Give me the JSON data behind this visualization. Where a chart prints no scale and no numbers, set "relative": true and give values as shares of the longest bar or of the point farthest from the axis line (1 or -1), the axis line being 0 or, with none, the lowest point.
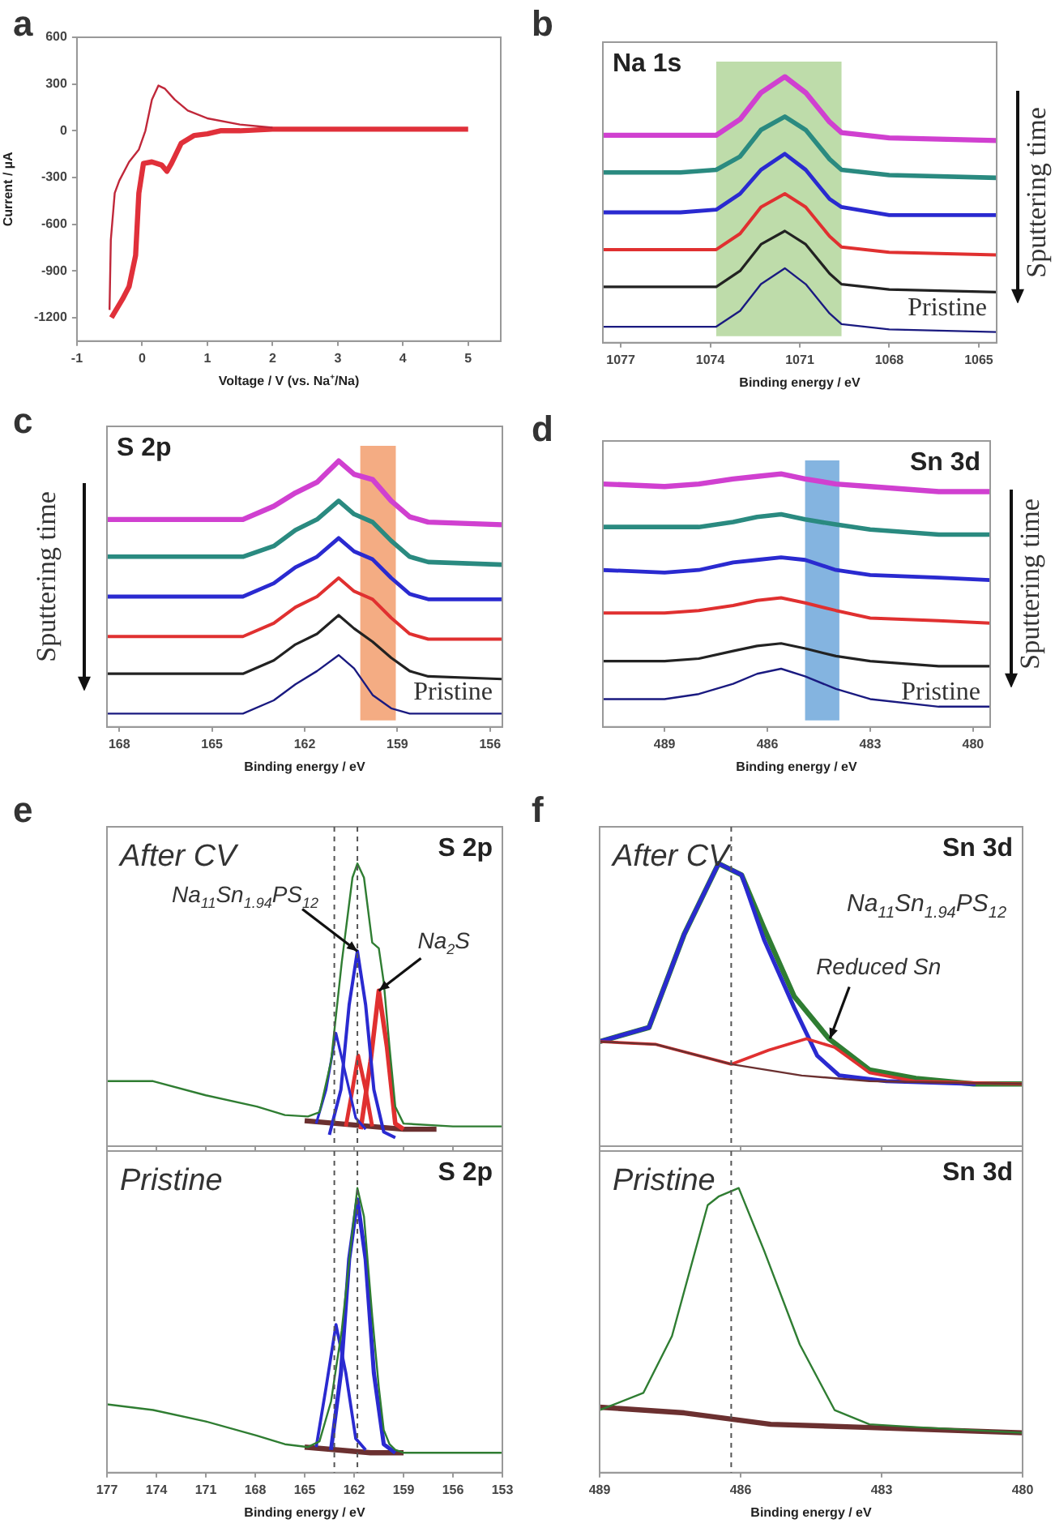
{
  "chart_data": [
    {
      "type": "line",
      "xlabel": "Voltage / V (vs. Na$^{+}$/Na)",
      "ylabel": "Current / µA",
      "xlim": [
        -1,
        5.5
      ],
      "xticks": [
        -1,
        0,
        1,
        2,
        3,
        4,
        5
      ],
      "ylim": [
        -1350,
        600
      ],
      "yticks": [
        -1200,
        -900,
        -600,
        -300,
        0,
        300,
        600
      ],
      "annotations": [
        "a"
      ],
      "series": [
        {
          "color": "#e0303a",
          "x": [
            5,
            4,
            3,
            2,
            1.5,
            1.2,
            1.0,
            0.8,
            0.6,
            0.45,
            0.38,
            0.3,
            0.15,
            0.02,
            -0.05,
            -0.1,
            -0.2,
            -0.3,
            -0.4,
            -0.47
          ],
          "values": [
            10,
            10,
            10,
            10,
            0,
            0,
            -20,
            -30,
            -80,
            -210,
            -260,
            -220,
            -200,
            -210,
            -400,
            -800,
            -1000,
            -1080,
            -1150,
            -1200
          ]
        },
        {
          "color": "#c0283a",
          "x": [
            -0.5,
            -0.48,
            -0.42,
            -0.35,
            -0.2,
            -0.05,
            0.05,
            0.15,
            0.25,
            0.35,
            0.5,
            0.7,
            1.0,
            1.5,
            2
          ],
          "values": [
            -1150,
            -700,
            -400,
            -320,
            -200,
            -120,
            0,
            200,
            290,
            270,
            200,
            130,
            80,
            40,
            20
          ]
        }
      ]
    },
    {
      "type": "line",
      "title": "Na 1s",
      "xlabel": "Binding energy / eV",
      "relative": true,
      "tick_labels": "x",
      "xlim": [
        1077.6,
        1064.4
      ],
      "xticks": [
        1077,
        1074,
        1071,
        1068,
        1065
      ],
      "annotations": [
        "b",
        "Pristine",
        "Sputtering time"
      ],
      "bands": [
        {
          "axis": "x",
          "from": 1073.8,
          "to": 1069.6,
          "color": "#a8d08d"
        }
      ],
      "series": [
        {
          "color": "#d040d0",
          "x": [
            1077.6,
            1075,
            1073.8,
            1073,
            1072.3,
            1071.5,
            1070.8,
            1070,
            1069.6,
            1068,
            1064.4
          ],
          "values": [
            0.78,
            0.78,
            0.78,
            0.84,
            0.94,
            1.0,
            0.94,
            0.83,
            0.79,
            0.77,
            0.76
          ]
        },
        {
          "color": "#2a8a80",
          "x": [
            1077.6,
            1075,
            1073.8,
            1073,
            1072.3,
            1071.5,
            1070.8,
            1070,
            1069.6,
            1068,
            1064.4
          ],
          "values": [
            0.64,
            0.64,
            0.65,
            0.7,
            0.8,
            0.85,
            0.8,
            0.69,
            0.65,
            0.63,
            0.62
          ]
        },
        {
          "color": "#2a2ad0",
          "x": [
            1077.6,
            1075,
            1073.8,
            1073,
            1072.3,
            1071.5,
            1070.8,
            1070,
            1069.6,
            1068,
            1064.4
          ],
          "values": [
            0.49,
            0.49,
            0.5,
            0.56,
            0.65,
            0.71,
            0.65,
            0.54,
            0.51,
            0.48,
            0.48
          ]
        },
        {
          "color": "#e03030",
          "x": [
            1077.6,
            1075,
            1073.8,
            1073,
            1072.3,
            1071.5,
            1070.8,
            1070,
            1069.6,
            1068,
            1064.4
          ],
          "values": [
            0.35,
            0.35,
            0.35,
            0.41,
            0.51,
            0.56,
            0.51,
            0.4,
            0.36,
            0.34,
            0.33
          ]
        },
        {
          "color": "#222222",
          "x": [
            1077.6,
            1075,
            1073.8,
            1073,
            1072.3,
            1071.5,
            1070.8,
            1070,
            1069.6,
            1068,
            1064.4
          ],
          "values": [
            0.21,
            0.21,
            0.21,
            0.27,
            0.37,
            0.42,
            0.37,
            0.26,
            0.22,
            0.2,
            0.19
          ]
        },
        {
          "color": "#1a1a80",
          "x": [
            1077.6,
            1075,
            1073.8,
            1073,
            1072.3,
            1071.5,
            1070.8,
            1070,
            1069.6,
            1068,
            1064.4
          ],
          "values": [
            0.06,
            0.06,
            0.06,
            0.12,
            0.22,
            0.28,
            0.22,
            0.11,
            0.07,
            0.05,
            0.04
          ]
        }
      ]
    },
    {
      "type": "line",
      "title": "S 2p",
      "xlabel": "Binding energy / eV",
      "relative": true,
      "tick_labels": "x",
      "xlim": [
        168.4,
        155.6
      ],
      "xticks": [
        168,
        165,
        162,
        159,
        156
      ],
      "annotations": [
        "c",
        "Pristine",
        "Sputtering time"
      ],
      "bands": [
        {
          "axis": "x",
          "from": 160.2,
          "to": 159.05,
          "color": "#f0905a"
        }
      ],
      "series": [
        {
          "color": "#d040d0",
          "x": [
            168.4,
            166,
            164,
            163,
            162.3,
            161.6,
            160.9,
            160.4,
            159.8,
            159.2,
            158.6,
            158,
            155.6
          ],
          "values": [
            0.78,
            0.78,
            0.78,
            0.83,
            0.88,
            0.92,
            1.0,
            0.95,
            0.93,
            0.85,
            0.79,
            0.77,
            0.76
          ]
        },
        {
          "color": "#2a8a80",
          "x": [
            168.4,
            166,
            164,
            163,
            162.3,
            161.6,
            160.9,
            160.4,
            159.8,
            159.2,
            158.6,
            158,
            155.6
          ],
          "values": [
            0.64,
            0.64,
            0.64,
            0.68,
            0.74,
            0.78,
            0.85,
            0.8,
            0.77,
            0.7,
            0.64,
            0.62,
            0.61
          ]
        },
        {
          "color": "#2a2ad0",
          "x": [
            168.4,
            166,
            164,
            163,
            162.3,
            161.6,
            160.9,
            160.4,
            159.8,
            159.2,
            158.6,
            158,
            155.6
          ],
          "values": [
            0.49,
            0.49,
            0.49,
            0.54,
            0.6,
            0.64,
            0.71,
            0.66,
            0.63,
            0.56,
            0.5,
            0.48,
            0.48
          ]
        },
        {
          "color": "#e03030",
          "x": [
            168.4,
            166,
            164,
            163,
            162.3,
            161.6,
            160.9,
            160.4,
            159.8,
            159.2,
            158.6,
            158,
            155.6
          ],
          "values": [
            0.34,
            0.34,
            0.34,
            0.39,
            0.45,
            0.49,
            0.56,
            0.51,
            0.48,
            0.41,
            0.35,
            0.33,
            0.33
          ]
        },
        {
          "color": "#222222",
          "x": [
            168.4,
            166,
            164,
            163,
            162.3,
            161.6,
            160.9,
            160.4,
            159.8,
            159.2,
            158.6,
            158,
            155.6
          ],
          "values": [
            0.2,
            0.2,
            0.2,
            0.25,
            0.31,
            0.35,
            0.42,
            0.37,
            0.32,
            0.26,
            0.21,
            0.19,
            0.18
          ]
        },
        {
          "color": "#1a1a80",
          "x": [
            168.4,
            166,
            164,
            163,
            162.3,
            161.6,
            160.9,
            160.4,
            159.8,
            159.2,
            158.6,
            158,
            155.6
          ],
          "values": [
            0.05,
            0.05,
            0.05,
            0.1,
            0.16,
            0.21,
            0.27,
            0.22,
            0.12,
            0.07,
            0.05,
            0.05,
            0.05
          ]
        }
      ]
    },
    {
      "type": "line",
      "title": "Sn 3d",
      "xlabel": "Binding energy / eV",
      "relative": true,
      "tick_labels": "x",
      "xlim": [
        490.8,
        479.5
      ],
      "xticks": [
        489,
        486,
        483,
        480
      ],
      "annotations": [
        "d",
        "Pristine",
        "Sputtering time"
      ],
      "bands": [
        {
          "axis": "x",
          "from": 484.9,
          "to": 483.9,
          "color": "#5b9bd5"
        }
      ],
      "series": [
        {
          "color": "#d040d0",
          "x": [
            490.8,
            489,
            488,
            487,
            486.3,
            485.6,
            484.9,
            484,
            483,
            481,
            479.5
          ],
          "values": [
            0.96,
            0.95,
            0.96,
            0.98,
            0.99,
            1.0,
            0.98,
            0.96,
            0.95,
            0.93,
            0.93
          ]
        },
        {
          "color": "#2a8a80",
          "x": [
            490.8,
            489,
            488,
            487,
            486.3,
            485.6,
            484.9,
            484,
            483,
            481,
            479.5
          ],
          "values": [
            0.79,
            0.79,
            0.79,
            0.81,
            0.83,
            0.84,
            0.82,
            0.8,
            0.78,
            0.76,
            0.76
          ]
        },
        {
          "color": "#2a2ad0",
          "x": [
            490.8,
            489,
            488,
            487,
            486.3,
            485.6,
            484.9,
            484,
            483,
            481,
            479.5
          ],
          "values": [
            0.62,
            0.61,
            0.62,
            0.65,
            0.66,
            0.67,
            0.66,
            0.62,
            0.6,
            0.59,
            0.58
          ]
        },
        {
          "color": "#e03030",
          "x": [
            490.8,
            489,
            488,
            487,
            486.3,
            485.6,
            484.9,
            484,
            483,
            481,
            479.5
          ],
          "values": [
            0.45,
            0.45,
            0.46,
            0.48,
            0.5,
            0.51,
            0.49,
            0.46,
            0.43,
            0.42,
            0.41
          ]
        },
        {
          "color": "#222222",
          "x": [
            490.8,
            489,
            488,
            487,
            486.3,
            485.6,
            484.9,
            484,
            483,
            481,
            479.5
          ],
          "values": [
            0.26,
            0.26,
            0.27,
            0.3,
            0.32,
            0.33,
            0.31,
            0.28,
            0.26,
            0.24,
            0.24
          ]
        },
        {
          "color": "#1a1a80",
          "x": [
            490.8,
            489,
            488,
            487,
            486.3,
            485.6,
            484.9,
            484,
            483,
            481,
            479.5
          ],
          "values": [
            0.11,
            0.11,
            0.13,
            0.17,
            0.21,
            0.23,
            0.2,
            0.15,
            0.11,
            0.08,
            0.08
          ]
        }
      ]
    },
    {
      "type": "line",
      "title": "S 2p",
      "relative": true,
      "tick_labels": false,
      "xlim": [
        177,
        153
      ],
      "xticks": [
        177,
        174,
        171,
        168,
        165,
        162,
        159,
        156,
        153
      ],
      "annotations": [
        "e",
        "After CV",
        {
          "text": "Na$_{11}$Sn$_{1.94}$PS$_{12}$",
          "x": 161.8,
          "y": 0.69
        },
        {
          "text": "Na$_{2}$S",
          "x": 160.5,
          "y": 0.55
        }
      ],
      "ref_lines": [
        {
          "axis": "x",
          "value": 163.2,
          "line_style": "dashed"
        },
        {
          "axis": "x",
          "value": 161.8,
          "line_style": "dashed"
        }
      ],
      "series": [
        {
          "color": "#6b3030",
          "x": [
            165,
            163,
            161,
            159,
            157
          ],
          "values": [
            0.09,
            0.08,
            0.07,
            0.06,
            0.06
          ]
        },
        {
          "color": "#e03030",
          "x": [
            161.6,
            161.0,
            160.5,
            160.0,
            159.5,
            159
          ],
          "values": [
            0.06,
            0.3,
            0.55,
            0.35,
            0.08,
            0.06
          ]
        },
        {
          "color": "#e03030",
          "x": [
            162.5,
            162.1,
            161.75,
            161.3,
            160.9
          ],
          "values": [
            0.07,
            0.2,
            0.32,
            0.2,
            0.07
          ]
        },
        {
          "color": "#2a2ad0",
          "x": [
            163.5,
            162.8,
            162.3,
            161.8,
            161.3,
            160.8,
            160.2,
            159.5
          ],
          "values": [
            0.04,
            0.2,
            0.5,
            0.69,
            0.5,
            0.2,
            0.05,
            0.03
          ]
        },
        {
          "color": "#2a2ad0",
          "x": [
            164.3,
            163.7,
            163.1,
            162.5,
            161.9,
            161.3
          ],
          "values": [
            0.08,
            0.2,
            0.4,
            0.25,
            0.1,
            0.06
          ]
        },
        {
          "color": "#2f7d32",
          "x": [
            177,
            174.2,
            171,
            167.9,
            166.2,
            164.8,
            164.1,
            163.4,
            162.75,
            162.1,
            161.8,
            161.4,
            160.9,
            160.5,
            160.2,
            159.85,
            159.5,
            159,
            156,
            153
          ],
          "values": [
            0.23,
            0.23,
            0.18,
            0.14,
            0.11,
            0.105,
            0.12,
            0.3,
            0.65,
            0.95,
            1.0,
            0.95,
            0.72,
            0.7,
            0.58,
            0.35,
            0.14,
            0.08,
            0.07,
            0.07
          ]
        }
      ]
    },
    {
      "type": "line",
      "title": "S 2p",
      "xlabel": "Binding energy / eV",
      "relative": true,
      "tick_labels": "x",
      "xlim": [
        177,
        153
      ],
      "xticks": [
        177,
        174,
        171,
        168,
        165,
        162,
        159,
        156,
        153
      ],
      "annotations": [
        "Pristine"
      ],
      "ref_lines": [
        {
          "axis": "x",
          "value": 163.2,
          "line_style": "dashed"
        },
        {
          "axis": "x",
          "value": 161.8,
          "line_style": "dashed"
        }
      ],
      "series": [
        {
          "color": "#6b3030",
          "x": [
            165,
            163,
            161,
            159
          ],
          "values": [
            0.09,
            0.08,
            0.07,
            0.07
          ]
        },
        {
          "color": "#2a2ad0",
          "x": [
            163.4,
            162.8,
            162.3,
            161.8,
            161.3,
            160.8,
            160.2,
            159.5
          ],
          "values": [
            0.08,
            0.35,
            0.75,
            0.96,
            0.75,
            0.35,
            0.1,
            0.07
          ]
        },
        {
          "color": "#2a2ad0",
          "x": [
            164.3,
            163.7,
            163.1,
            162.5,
            161.9,
            161.3
          ],
          "values": [
            0.09,
            0.3,
            0.52,
            0.35,
            0.12,
            0.08
          ]
        },
        {
          "color": "#2f7d32",
          "x": [
            177,
            174.2,
            171,
            167.9,
            166.2,
            164.8,
            164.1,
            163.4,
            162.75,
            162.1,
            161.8,
            161.4,
            160.9,
            160.5,
            160.2,
            159.85,
            159.5,
            159,
            156,
            153
          ],
          "values": [
            0.24,
            0.22,
            0.18,
            0.13,
            0.1,
            0.09,
            0.11,
            0.25,
            0.5,
            0.85,
            1.0,
            0.9,
            0.55,
            0.3,
            0.15,
            0.1,
            0.08,
            0.07,
            0.07,
            0.07
          ]
        }
      ]
    },
    {
      "type": "line",
      "title": "Sn 3d",
      "relative": true,
      "tick_labels": false,
      "xlim": [
        489,
        480
      ],
      "xticks": [
        489,
        486,
        483,
        480
      ],
      "annotations": [
        "f",
        "After CV",
        "Na$_{11}$Sn$_{1.94}$PS$_{12}$",
        {
          "text": "Reduced Sn",
          "x": 484.1,
          "y": 0.38
        }
      ],
      "ref_lines": [
        {
          "axis": "x",
          "value": 486.2,
          "line_style": "dashed"
        }
      ],
      "series": [
        {
          "color": "#2f7d32",
          "x": [
            489,
            487.95,
            487.2,
            486.47,
            485.98,
            485.5,
            484.86,
            484.12,
            483.26,
            482.27,
            481.04,
            480
          ],
          "values": [
            0.37,
            0.42,
            0.75,
            1.0,
            0.96,
            0.77,
            0.53,
            0.38,
            0.27,
            0.24,
            0.22,
            0.22
          ]
        },
        {
          "color": "#2a2ad0",
          "x": [
            489,
            487.95,
            487.2,
            486.47,
            485.98,
            485.5,
            484.86,
            484.37,
            483.9,
            482.9,
            481
          ],
          "values": [
            0.37,
            0.42,
            0.75,
            1.0,
            0.96,
            0.73,
            0.49,
            0.32,
            0.25,
            0.23,
            0.22
          ]
        },
        {
          "color": "#e03030",
          "x": [
            489,
            487.8,
            486.2,
            485.4,
            484.6,
            484,
            483.26,
            482.3,
            480
          ],
          "values": [
            0.37,
            0.36,
            0.29,
            0.34,
            0.38,
            0.35,
            0.26,
            0.23,
            0.22
          ]
        },
        {
          "color": "#6b3030",
          "x": [
            489,
            487.8,
            486.2,
            484.7,
            483.26,
            480
          ],
          "values": [
            0.37,
            0.36,
            0.29,
            0.25,
            0.23,
            0.22
          ]
        }
      ]
    },
    {
      "type": "line",
      "title": "Sn 3d",
      "xlabel": "Binding energy / eV",
      "relative": true,
      "tick_labels": "x",
      "xlim": [
        489,
        480
      ],
      "xticks": [
        489,
        486,
        483,
        480
      ],
      "annotations": [
        "Pristine"
      ],
      "ref_lines": [
        {
          "axis": "x",
          "value": 486.2,
          "line_style": "dashed"
        }
      ],
      "series": [
        {
          "color": "#6b3030",
          "x": [
            489,
            487.2,
            485.36,
            483.5,
            480
          ],
          "values": [
            0.23,
            0.21,
            0.17,
            0.16,
            0.14
          ]
        },
        {
          "color": "#2f7d32",
          "x": [
            489,
            488.07,
            487.46,
            486.7,
            486.47,
            486.04,
            485.5,
            484.74,
            484,
            483.26,
            482.27,
            480
          ],
          "values": [
            0.22,
            0.28,
            0.48,
            0.94,
            0.97,
            1.0,
            0.78,
            0.45,
            0.22,
            0.17,
            0.16,
            0.14
          ]
        }
      ]
    }
  ]
}
